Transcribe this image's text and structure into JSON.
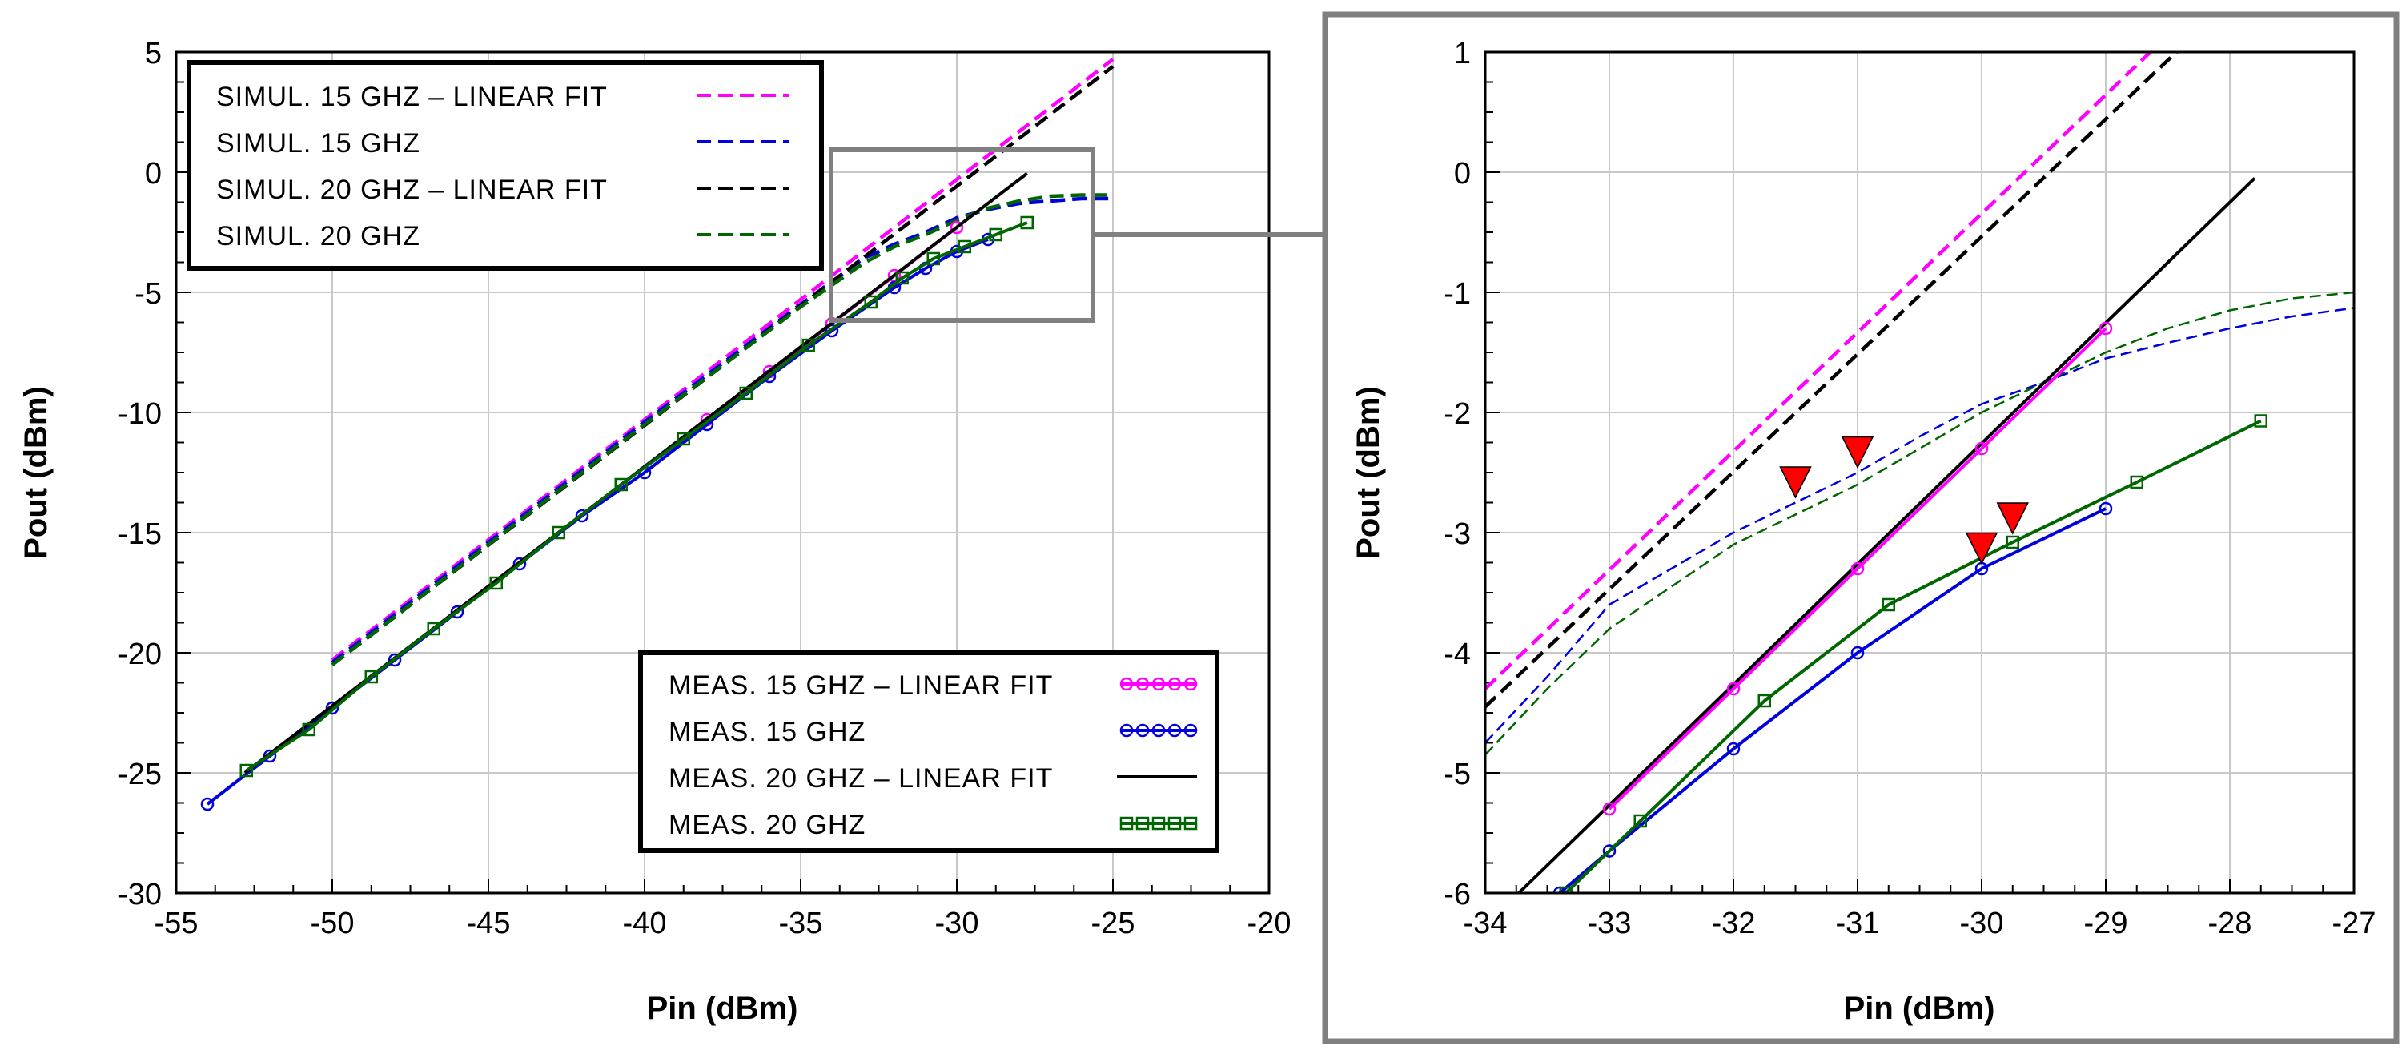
{
  "chart_data": [
    {
      "type": "line",
      "panel": "main",
      "title": "",
      "xlabel": "Pin (dBm)",
      "ylabel": "Pout (dBm)",
      "xlim": [
        -55,
        -20
      ],
      "ylim": [
        -30,
        5
      ],
      "xticks": [
        -55,
        -50,
        -45,
        -40,
        -35,
        -30,
        -25,
        -20
      ],
      "yticks": [
        -30,
        -25,
        -20,
        -15,
        -10,
        -5,
        0,
        5
      ],
      "xtick_labels": [
        "-55",
        "-50",
        "-45",
        "-40",
        "-35",
        "-30",
        "-25",
        "-20"
      ],
      "ytick_labels": [
        "-30",
        "-25",
        "-20",
        "-15",
        "-10",
        "-5",
        "0",
        "5"
      ],
      "grid": true,
      "zoom_box": {
        "x": [
          -34,
          -25.5
        ],
        "y": [
          -6,
          1
        ]
      },
      "legends": [
        {
          "placement": "top-left",
          "entries": [
            {
              "label": "SIMUL. 15 GHZ – LINEAR FIT",
              "series": "sim15fit"
            },
            {
              "label": "SIMUL. 15 GHZ",
              "series": "sim15"
            },
            {
              "label": "SIMUL. 20 GHZ – LINEAR FIT",
              "series": "sim20fit"
            },
            {
              "label": "SIMUL. 20 GHZ",
              "series": "sim20"
            }
          ]
        },
        {
          "placement": "bottom-right",
          "entries": [
            {
              "label": "MEAS. 15 GHZ – LINEAR FIT",
              "series": "meas15fit"
            },
            {
              "label": "MEAS. 15 GHZ",
              "series": "meas15"
            },
            {
              "label": "MEAS. 20 GHZ – LINEAR FIT",
              "series": "meas20fit"
            },
            {
              "label": "MEAS. 20 GHZ",
              "series": "meas20"
            }
          ]
        }
      ],
      "series": [
        {
          "name": "sim15fit",
          "color": "#ff00ff",
          "style": "dashed",
          "x": [
            -50,
            -25
          ],
          "y": [
            -20.3,
            4.7
          ]
        },
        {
          "name": "sim15",
          "color": "#0000dd",
          "style": "dashed",
          "x": [
            -50,
            -45,
            -40,
            -35,
            -33,
            -32,
            -31,
            -30,
            -29,
            -28,
            -27,
            -26,
            -25
          ],
          "y": [
            -20.4,
            -15.4,
            -10.4,
            -5.5,
            -3.6,
            -3.0,
            -2.5,
            -1.9,
            -1.55,
            -1.3,
            -1.2,
            -1.1,
            -1.1
          ]
        },
        {
          "name": "sim20fit",
          "color": "#000000",
          "style": "dashed",
          "x": [
            -50,
            -25
          ],
          "y": [
            -20.5,
            4.4
          ]
        },
        {
          "name": "sim20",
          "color": "#006600",
          "style": "dashed",
          "x": [
            -50,
            -45,
            -40,
            -35,
            -33,
            -32,
            -31,
            -30,
            -29,
            -28,
            -27,
            -26,
            -25
          ],
          "y": [
            -20.5,
            -15.5,
            -10.5,
            -5.6,
            -3.8,
            -3.1,
            -2.6,
            -2.0,
            -1.5,
            -1.2,
            -1.0,
            -0.95,
            -0.95
          ]
        },
        {
          "name": "meas15fit",
          "color": "#ff00ff",
          "style": "solid",
          "marker": "circle",
          "x": [
            -38,
            -36,
            -34,
            -32,
            -30
          ],
          "y": [
            -10.3,
            -8.3,
            -6.3,
            -4.3,
            -2.3
          ]
        },
        {
          "name": "meas15",
          "color": "#0000dd",
          "style": "solid",
          "marker": "circle",
          "x": [
            -54,
            -52,
            -50,
            -48,
            -46,
            -44,
            -42,
            -40,
            -38,
            -36,
            -34,
            -32,
            -31,
            -30,
            -29
          ],
          "y": [
            -26.3,
            -24.3,
            -22.3,
            -20.3,
            -18.3,
            -16.3,
            -14.3,
            -12.5,
            -10.5,
            -8.5,
            -6.6,
            -4.8,
            -4.0,
            -3.3,
            -2.8
          ]
        },
        {
          "name": "meas20fit",
          "color": "#000000",
          "style": "solid",
          "x": [
            -52.8,
            -27.75
          ],
          "y": [
            -25.0,
            -0.05
          ]
        },
        {
          "name": "meas20",
          "color": "#006600",
          "style": "solid",
          "marker": "square",
          "x": [
            -52.75,
            -50.75,
            -48.75,
            -46.75,
            -44.75,
            -42.75,
            -40.75,
            -38.75,
            -36.75,
            -34.75,
            -32.75,
            -31.75,
            -30.75,
            -29.75,
            -28.75,
            -27.75
          ],
          "y": [
            -24.9,
            -23.2,
            -21.0,
            -19.0,
            -17.1,
            -15.0,
            -13.0,
            -11.1,
            -9.2,
            -7.2,
            -5.4,
            -4.4,
            -3.6,
            -3.1,
            -2.6,
            -2.1
          ]
        }
      ]
    },
    {
      "type": "line",
      "panel": "zoom",
      "title": "",
      "xlabel": "Pin (dBm)",
      "ylabel": "Pout (dBm)",
      "xlim": [
        -34,
        -27
      ],
      "ylim": [
        -6,
        1
      ],
      "xticks": [
        -34,
        -33,
        -32,
        -31,
        -30,
        -29,
        -28,
        -27
      ],
      "yticks": [
        -6,
        -5,
        -4,
        -3,
        -2,
        -1,
        0,
        1
      ],
      "xtick_labels": [
        "-34",
        "-33",
        "-32",
        "-31",
        "-30",
        "-29",
        "-28",
        "-27"
      ],
      "ytick_labels": [
        "-6",
        "-5",
        "-4",
        "-3",
        "-2",
        "-1",
        "0",
        "1"
      ],
      "grid": true,
      "series": [
        {
          "name": "sim15fit",
          "color": "#ff00ff",
          "style": "dashed",
          "x": [
            -34,
            -28.64
          ],
          "y": [
            -4.3,
            1.0
          ]
        },
        {
          "name": "sim20fit",
          "color": "#000000",
          "style": "dashed",
          "x": [
            -34,
            -28.43
          ],
          "y": [
            -4.45,
            1.0
          ]
        },
        {
          "name": "sim15",
          "color": "#0000dd",
          "style": "dashed",
          "x": [
            -34,
            -33.5,
            -33,
            -32.5,
            -32,
            -31.5,
            -31,
            -30.5,
            -30,
            -29.5,
            -29,
            -28.5,
            -28,
            -27.5,
            -27
          ],
          "y": [
            -4.75,
            -4.2,
            -3.6,
            -3.3,
            -3.0,
            -2.75,
            -2.5,
            -2.2,
            -1.93,
            -1.75,
            -1.55,
            -1.42,
            -1.3,
            -1.2,
            -1.13
          ]
        },
        {
          "name": "sim20",
          "color": "#006600",
          "style": "dashed",
          "x": [
            -34,
            -33.5,
            -33,
            -32.5,
            -32,
            -31.5,
            -31,
            -30.5,
            -30,
            -29.5,
            -29,
            -28.5,
            -28,
            -27.5,
            -27
          ],
          "y": [
            -4.85,
            -4.3,
            -3.8,
            -3.45,
            -3.1,
            -2.85,
            -2.6,
            -2.3,
            -2.0,
            -1.75,
            -1.5,
            -1.3,
            -1.15,
            -1.05,
            -1.0
          ]
        },
        {
          "name": "meas20fit",
          "color": "#000000",
          "style": "solid",
          "x": [
            -33.73,
            -27.8
          ],
          "y": [
            -6.0,
            -0.05
          ]
        },
        {
          "name": "meas15fit",
          "color": "#ff00ff",
          "style": "solid",
          "marker": "circle",
          "x": [
            -33,
            -32,
            -31,
            -30,
            -29
          ],
          "y": [
            -5.3,
            -4.3,
            -3.3,
            -2.3,
            -1.3
          ]
        },
        {
          "name": "meas15",
          "color": "#0000dd",
          "style": "solid",
          "marker": "circle",
          "x": [
            -33.4,
            -33,
            -32,
            -31,
            -30,
            -29
          ],
          "y": [
            -6.0,
            -5.65,
            -4.8,
            -4.0,
            -3.3,
            -2.8
          ]
        },
        {
          "name": "meas20",
          "color": "#006600",
          "style": "solid",
          "marker": "square",
          "x": [
            -33.35,
            -32.75,
            -31.75,
            -30.75,
            -29.75,
            -28.75,
            -27.75
          ],
          "y": [
            -6.0,
            -5.4,
            -4.4,
            -3.6,
            -3.08,
            -2.58,
            -2.07
          ]
        }
      ],
      "markers": {
        "shape": "triangle-down",
        "color": "#ff0000",
        "points": [
          {
            "x": -31.5,
            "y": -2.6
          },
          {
            "x": -31.0,
            "y": -2.35
          },
          {
            "x": -30.0,
            "y": -3.15
          },
          {
            "x": -29.75,
            "y": -2.9
          }
        ]
      }
    }
  ]
}
